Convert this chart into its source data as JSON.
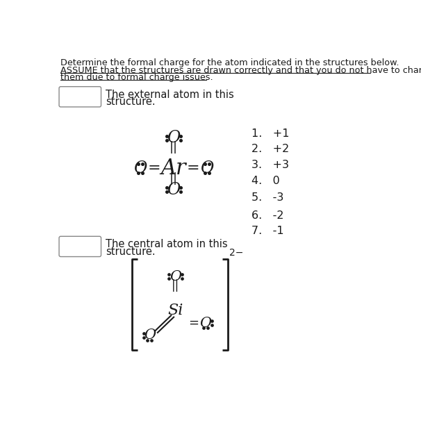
{
  "bg_color": "#ffffff",
  "title_line1": "Determine the formal charge for the atom indicated in the structures below.",
  "title_line2": "ASSUME that the structures are drawn correctly and that you do not have to change",
  "title_line3": "them due to formal charge issues.",
  "q1_label1": "The external atom in this",
  "q1_label2": "structure.",
  "q2_label1": "The central atom in this",
  "q2_label2": "structure.",
  "answers": [
    "1.   +1",
    "2.   +2",
    "3.   +3",
    "4.   0",
    "5.   -3",
    "6.   -2",
    "7.   -1"
  ],
  "text_color": "#1a1a1a",
  "underline_color": "#1a1a1a",
  "box_color": "#888888",
  "font_size_header": 9.2,
  "font_size_label": 10.5,
  "font_size_answer": 11.5,
  "font_size_atom_large": 22,
  "font_size_atom_small": 17,
  "font_size_bond": 13,
  "font_size_dot": 9
}
